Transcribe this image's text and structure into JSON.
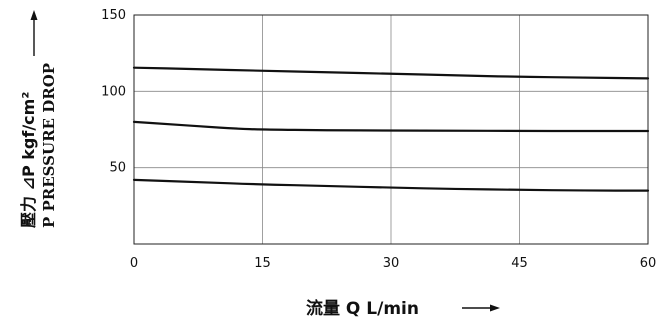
{
  "chart_data": {
    "type": "line",
    "title": "",
    "xlabel": "流量 Q L/min",
    "ylabel_line1": "壓力 ⊿P kgf/cm²",
    "ylabel_line2": "P PRESSURE DROP",
    "xlim": [
      0,
      60
    ],
    "ylim": [
      0,
      150
    ],
    "x_ticks": [
      "0",
      "15",
      "30",
      "45",
      "60"
    ],
    "y_ticks": [
      "50",
      "100",
      "150"
    ],
    "grid": true,
    "axis_arrows": true,
    "line_color": "#111111",
    "series": [
      {
        "x": [
          0,
          7.5,
          15,
          22.5,
          30,
          37.5,
          45,
          52.5,
          60
        ],
        "values": [
          115.5,
          114.5,
          113.5,
          112.5,
          111.5,
          110.5,
          109.5,
          109,
          108.5
        ]
      },
      {
        "x": [
          0,
          4,
          8,
          12,
          15,
          22.5,
          30,
          37.5,
          45,
          52.5,
          60
        ],
        "values": [
          80,
          78.5,
          77,
          75.5,
          75,
          74.5,
          74.3,
          74.2,
          74.1,
          74,
          74
        ]
      },
      {
        "x": [
          0,
          7.5,
          15,
          22.5,
          30,
          37.5,
          45,
          52.5,
          60
        ],
        "values": [
          42,
          40.5,
          39,
          38,
          37,
          36,
          35.5,
          35,
          35
        ]
      }
    ]
  }
}
